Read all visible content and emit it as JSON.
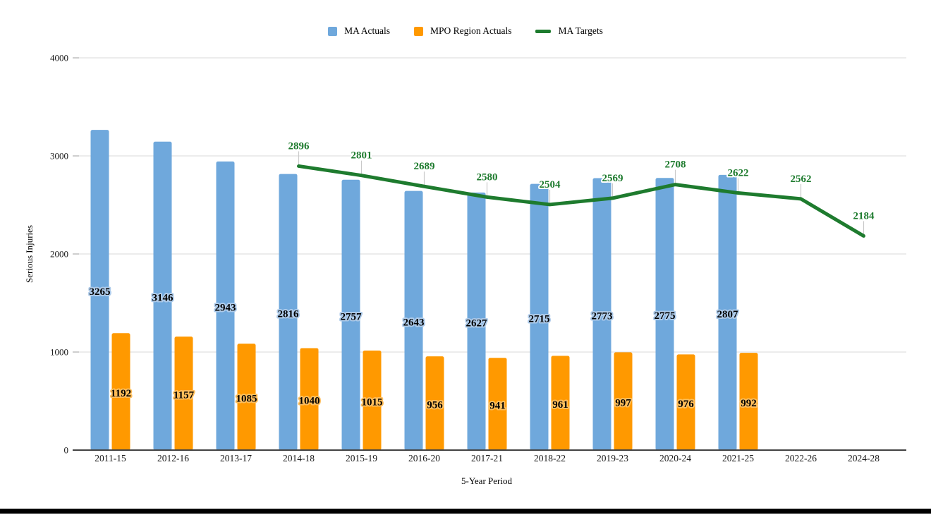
{
  "chart_data": {
    "type": "bar",
    "title": "",
    "xlabel": "5-Year Period",
    "ylabel": "Serious Injuries",
    "ylim": [
      0,
      4000
    ],
    "yticks": [
      0,
      1000,
      2000,
      3000,
      4000
    ],
    "grid": true,
    "legend_position": "top",
    "categories": [
      "2011-15",
      "2012-16",
      "2013-17",
      "2014-18",
      "2015-19",
      "2016-20",
      "2017-21",
      "2018-22",
      "2019-23",
      "2020-24",
      "2021-25",
      "2022-26",
      "2024-28"
    ],
    "series": [
      {
        "name": "MA Actuals",
        "type": "bar",
        "color": "#6fa8dc",
        "label_color": "#000000",
        "label_halo": "#aecbea",
        "values": [
          3265,
          3146,
          2943,
          2816,
          2757,
          2643,
          2627,
          2715,
          2773,
          2775,
          2807,
          null,
          null
        ]
      },
      {
        "name": "MPO Region Actuals",
        "type": "bar",
        "color": "#ff9900",
        "label_color": "#000000",
        "label_halo": "#ffbe5c",
        "values": [
          1192,
          1157,
          1085,
          1040,
          1015,
          956,
          941,
          961,
          997,
          976,
          992,
          null,
          null
        ]
      },
      {
        "name": "MA Targets",
        "type": "line",
        "color": "#1e7b2e",
        "label_color": "#1e7b2e",
        "label_halo": "#ffffff",
        "values": [
          null,
          null,
          null,
          2896,
          2801,
          2689,
          2580,
          2504,
          2569,
          2708,
          2622,
          2562,
          2184
        ]
      }
    ]
  },
  "colors": {
    "gridline": "#d9d9d9",
    "tick_stub": "#9e9e9e",
    "axis_line": "#424242",
    "tick_text": "#1a1a1a",
    "leader_line": "#c9c9c9",
    "page_rule": "#000000"
  }
}
